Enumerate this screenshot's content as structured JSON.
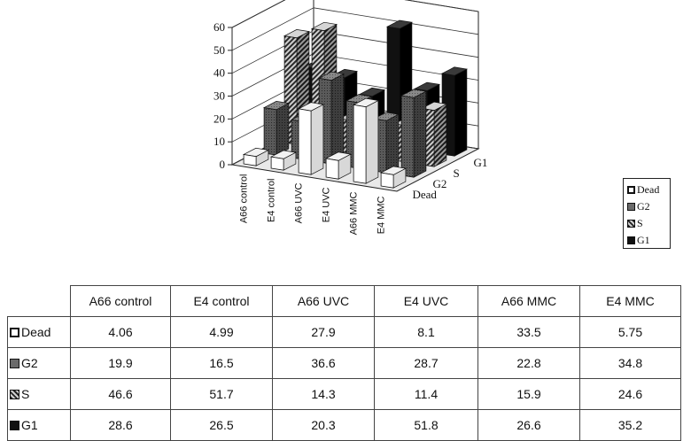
{
  "chart_data": {
    "type": "bar",
    "subtype": "3d-column",
    "categories": [
      "A66 control",
      "E4 control",
      "A66 UVC",
      "E4 UVC",
      "A66 MMC",
      "E4 MMC"
    ],
    "series": [
      {
        "name": "Dead",
        "values": [
          4.06,
          4.99,
          27.9,
          8.1,
          33.5,
          5.75
        ],
        "color": "#ffffff"
      },
      {
        "name": "G2",
        "values": [
          19.9,
          16.5,
          36.6,
          28.7,
          22.8,
          34.8
        ],
        "color": "#6a6a6a"
      },
      {
        "name": "S",
        "values": [
          46.6,
          51.7,
          14.3,
          11.4,
          15.9,
          24.6
        ],
        "color": "hatched"
      },
      {
        "name": "G1",
        "values": [
          28.6,
          26.5,
          20.3,
          51.8,
          26.6,
          35.2
        ],
        "color": "#111111"
      }
    ],
    "y_ticks": [
      0,
      10,
      20,
      30,
      40,
      50,
      60
    ],
    "ylim": [
      0,
      60
    ],
    "title": "",
    "xlabel": "",
    "ylabel": "",
    "grid": true,
    "legend": "right"
  },
  "table": {
    "columns": [
      "A66  control",
      "E4  control",
      "A66 UVC",
      "E4 UVC",
      "A66 MMC",
      "E4 MMC"
    ],
    "rows": [
      {
        "label": "Dead",
        "values": [
          "4.06",
          "4.99",
          "27.9",
          "8.1",
          "33.5",
          "5.75"
        ]
      },
      {
        "label": "G2",
        "values": [
          "19.9",
          "16.5",
          "36.6",
          "28.7",
          "22.8",
          "34.8"
        ]
      },
      {
        "label": "S",
        "values": [
          "46.6",
          "51.7",
          "14.3",
          "11.4",
          "15.9",
          "24.6"
        ]
      },
      {
        "label": "G1",
        "values": [
          "28.6",
          "26.5",
          "20.3",
          "51.8",
          "26.6",
          "35.2"
        ]
      }
    ]
  }
}
